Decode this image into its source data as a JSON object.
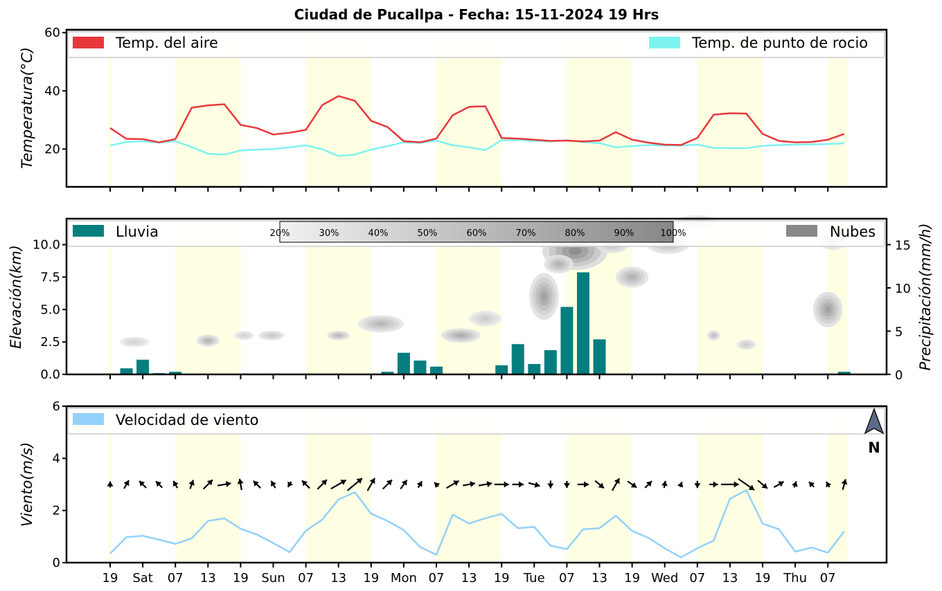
{
  "title": "Ciudad de Pucallpa   -   Fecha: 15-11-2024 19 Hrs",
  "x_ticks": [
    "19",
    "Sat",
    "07",
    "13",
    "19",
    "Sun",
    "07",
    "13",
    "19",
    "Mon",
    "07",
    "13",
    "19",
    "Tue",
    "07",
    "13",
    "19",
    "Wed",
    "07",
    "13",
    "19",
    "Thu",
    "07"
  ],
  "colors": {
    "air": "#e8383b",
    "dew": "#7ef2f0",
    "rain": "#067e7f",
    "cloud": "#888888",
    "wind": "#93d1fb",
    "day": "#ffffe3",
    "arrow": "#000000"
  },
  "chart_data": [
    {
      "type": "line",
      "name": "temperature",
      "ylabel": "Temperatura(°C)",
      "ylim": [
        7,
        61
      ],
      "yticks": [
        "20",
        "40",
        "60"
      ],
      "legend": {
        "left": "Temp. del aire",
        "right": "Temp. de punto de rocio"
      },
      "x": [
        0,
        1,
        2,
        3,
        4,
        5,
        6,
        7,
        8,
        9,
        10,
        11,
        12,
        13,
        14,
        15,
        16,
        17,
        18,
        19,
        20,
        21,
        22,
        23,
        24,
        25,
        26,
        27,
        28,
        29,
        30,
        31,
        32,
        33,
        34,
        35,
        36,
        37,
        38,
        39,
        40,
        41,
        42,
        43,
        44,
        45
      ],
      "series": [
        {
          "name": "Temp. del aire",
          "values": [
            27.2,
            23.5,
            23.4,
            22.3,
            23.4,
            34.2,
            35.0,
            35.4,
            28.3,
            27.2,
            25.0,
            25.6,
            26.6,
            35.1,
            38.2,
            36.6,
            29.7,
            27.6,
            22.7,
            22.3,
            23.6,
            31.6,
            34.5,
            34.7,
            23.8,
            23.6,
            23.2,
            22.8,
            22.9,
            22.6,
            22.9,
            25.8,
            23.2,
            22.2,
            21.5,
            21.4,
            23.8,
            31.8,
            32.3,
            32.2,
            25.2,
            22.8,
            22.3,
            22.4,
            23.2,
            25.2
          ]
        },
        {
          "name": "Temp. de punto de rocio",
          "values": [
            21.2,
            22.4,
            22.7,
            22.2,
            22.7,
            20.7,
            18.4,
            18.1,
            19.5,
            19.8,
            20.0,
            20.6,
            21.3,
            19.9,
            17.6,
            18.1,
            19.8,
            21.0,
            22.3,
            22.1,
            22.9,
            21.3,
            20.6,
            19.6,
            23.0,
            23.1,
            22.8,
            22.6,
            23.0,
            22.4,
            22.0,
            20.6,
            21.0,
            21.4,
            21.2,
            21.2,
            21.5,
            20.4,
            20.3,
            20.3,
            21.1,
            21.4,
            21.5,
            21.6,
            21.7,
            22.0
          ]
        }
      ]
    },
    {
      "type": "bar",
      "name": "precipitation",
      "ylabel_left": "Elevación(km)",
      "ylabel_right": "Precipitación(mm/h)",
      "ylim_left": [
        0,
        12
      ],
      "ylim_right": [
        0,
        18
      ],
      "yticks_left": [
        "0.0",
        "2.5",
        "5.0",
        "7.5",
        "10.0"
      ],
      "yticks_right": [
        "0",
        "5",
        "10",
        "15"
      ],
      "legend": {
        "left": "Lluvia",
        "right": "Nubes"
      },
      "cloud_scale": [
        "20%",
        "30%",
        "40%",
        "50%",
        "60%",
        "70%",
        "80%",
        "90%",
        "100%"
      ],
      "x": [
        0,
        1,
        2,
        3,
        4,
        5,
        6,
        7,
        8,
        9,
        10,
        11,
        12,
        13,
        14,
        15,
        16,
        17,
        18,
        19,
        20,
        21,
        22,
        23,
        24,
        25,
        26,
        27,
        28,
        29,
        30,
        31,
        32,
        33,
        34,
        35,
        36,
        37,
        38,
        39,
        40,
        41,
        42,
        43,
        44,
        45
      ],
      "values": [
        0,
        0.7,
        1.7,
        0.15,
        0.3,
        0,
        0,
        0,
        0,
        0,
        0,
        0,
        0,
        0,
        0,
        0,
        0,
        0.3,
        2.5,
        1.6,
        0.9,
        0.05,
        0.05,
        0.05,
        1.05,
        3.5,
        1.2,
        2.8,
        7.8,
        11.8,
        4.05,
        0,
        0,
        0,
        0,
        0,
        0,
        0,
        0,
        0,
        0,
        0.05,
        0,
        0,
        0,
        0.3
      ],
      "cloud_patches": [
        {
          "x": 1.5,
          "elev": 2.5,
          "w": 0.9,
          "h": 0.35,
          "cover": 0.3
        },
        {
          "x": 6.0,
          "elev": 2.6,
          "w": 0.7,
          "h": 0.5,
          "cover": 0.6
        },
        {
          "x": 8.2,
          "elev": 3.0,
          "w": 0.6,
          "h": 0.25,
          "cover": 0.3
        },
        {
          "x": 9.9,
          "elev": 3.0,
          "w": 0.8,
          "h": 0.3,
          "cover": 0.4
        },
        {
          "x": 14.0,
          "elev": 3.0,
          "w": 0.7,
          "h": 0.3,
          "cover": 0.55
        },
        {
          "x": 16.6,
          "elev": 3.9,
          "w": 1.4,
          "h": 0.9,
          "cover": 0.55
        },
        {
          "x": 21.5,
          "elev": 3.0,
          "w": 1.2,
          "h": 0.7,
          "cover": 0.65
        },
        {
          "x": 23.0,
          "elev": 4.3,
          "w": 1.0,
          "h": 0.8,
          "cover": 0.35
        },
        {
          "x": 26.6,
          "elev": 6.0,
          "w": 0.9,
          "h": 3.2,
          "cover": 0.75
        },
        {
          "x": 28.5,
          "elev": 9.5,
          "w": 2.0,
          "h": 2.5,
          "cover": 0.95
        },
        {
          "x": 27.5,
          "elev": 8.5,
          "w": 0.9,
          "h": 1.0,
          "cover": 0.6
        },
        {
          "x": 30.8,
          "elev": 10.0,
          "w": 1.0,
          "h": 0.9,
          "cover": 0.5
        },
        {
          "x": 32.0,
          "elev": 7.5,
          "w": 1.0,
          "h": 1.2,
          "cover": 0.6
        },
        {
          "x": 34.2,
          "elev": 10.0,
          "w": 1.3,
          "h": 1.0,
          "cover": 0.5
        },
        {
          "x": 36.0,
          "elev": 11.8,
          "w": 1.4,
          "h": 0.5,
          "cover": 0.3
        },
        {
          "x": 37.0,
          "elev": 3.0,
          "w": 0.4,
          "h": 0.35,
          "cover": 0.5
        },
        {
          "x": 39.0,
          "elev": 2.3,
          "w": 0.6,
          "h": 0.35,
          "cover": 0.35
        },
        {
          "x": 44.0,
          "elev": 5.0,
          "w": 0.9,
          "h": 2.3,
          "cover": 0.75
        },
        {
          "x": 44.3,
          "elev": 10.2,
          "w": 0.8,
          "h": 0.8,
          "cover": 0.4
        }
      ]
    },
    {
      "type": "line",
      "name": "wind",
      "ylabel": "Viento(m/s)",
      "ylim": [
        0,
        6
      ],
      "yticks": [
        "0",
        "2",
        "4",
        "6"
      ],
      "legend": {
        "left": "Velocidad de viento"
      },
      "north_label": "N",
      "x": [
        0,
        1,
        2,
        3,
        4,
        5,
        6,
        7,
        8,
        9,
        10,
        11,
        12,
        13,
        14,
        15,
        16,
        17,
        18,
        19,
        20,
        21,
        22,
        23,
        24,
        25,
        26,
        27,
        28,
        29,
        30,
        31,
        32,
        33,
        34,
        35,
        36,
        37,
        38,
        39,
        40,
        41,
        42,
        43,
        44,
        45
      ],
      "series": [
        {
          "name": "Velocidad de viento",
          "values": [
            0.35,
            0.98,
            1.03,
            0.88,
            0.72,
            0.93,
            1.6,
            1.7,
            1.3,
            1.08,
            0.75,
            0.4,
            1.22,
            1.65,
            2.42,
            2.7,
            1.88,
            1.6,
            1.25,
            0.6,
            0.3,
            1.84,
            1.5,
            1.7,
            1.87,
            1.32,
            1.37,
            0.65,
            0.52,
            1.28,
            1.32,
            1.8,
            1.22,
            0.95,
            0.55,
            0.2,
            0.55,
            0.85,
            2.45,
            2.78,
            1.5,
            1.28,
            0.42,
            0.58,
            0.38,
            1.2
          ]
        }
      ],
      "arrow_dir_deg": [
        270,
        300,
        225,
        225,
        240,
        290,
        315,
        350,
        260,
        225,
        240,
        120,
        225,
        315,
        330,
        320,
        300,
        315,
        305,
        300,
        225,
        330,
        350,
        350,
        0,
        0,
        15,
        90,
        90,
        0,
        40,
        300,
        35,
        315,
        280,
        290,
        90,
        0,
        0,
        35,
        40,
        330,
        290,
        225,
        240,
        285
      ]
    }
  ]
}
